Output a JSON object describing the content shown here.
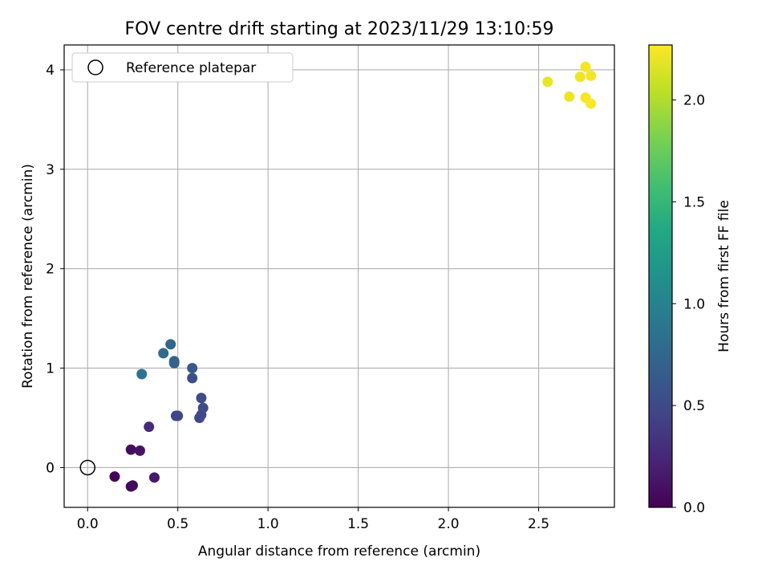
{
  "chart_data": {
    "type": "scatter",
    "title": "FOV centre drift starting at 2023/11/29 13:10:59",
    "xlabel": "Angular distance from reference (arcmin)",
    "ylabel": "Rotation from reference (arcmin)",
    "xlim": [
      -0.13,
      2.92
    ],
    "ylim": [
      -0.4,
      4.25
    ],
    "xticks": [
      0.0,
      0.5,
      1.0,
      1.5,
      2.0,
      2.5
    ],
    "xtick_labels": [
      "0.0",
      "0.5",
      "1.0",
      "1.5",
      "2.0",
      "2.5"
    ],
    "yticks": [
      0,
      1,
      2,
      3,
      4
    ],
    "ytick_labels": [
      "0",
      "1",
      "2",
      "3",
      "4"
    ],
    "grid": true,
    "legend": {
      "placement": "top-left",
      "entries": [
        "Reference platepar"
      ]
    },
    "reference_point": {
      "x": 0.0,
      "y": 0.0,
      "marker": "hollow-circle"
    },
    "colorbar": {
      "label": "Hours from first FF file",
      "colormap": "viridis",
      "range": [
        0.0,
        2.27
      ],
      "ticks": [
        0.0,
        0.5,
        1.0,
        1.5,
        2.0
      ],
      "tick_labels": [
        "0.0",
        "0.5",
        "1.0",
        "1.5",
        "2.0"
      ]
    },
    "points": [
      {
        "x": 0.15,
        "y": -0.09,
        "c": 0.02
      },
      {
        "x": 0.24,
        "y": -0.19,
        "c": 0.04
      },
      {
        "x": 0.25,
        "y": -0.18,
        "c": 0.05
      },
      {
        "x": 0.24,
        "y": 0.18,
        "c": 0.08
      },
      {
        "x": 0.29,
        "y": 0.17,
        "c": 0.12
      },
      {
        "x": 0.37,
        "y": -0.1,
        "c": 0.16
      },
      {
        "x": 0.34,
        "y": 0.41,
        "c": 0.28
      },
      {
        "x": 0.49,
        "y": 0.52,
        "c": 0.45
      },
      {
        "x": 0.5,
        "y": 0.52,
        "c": 0.47
      },
      {
        "x": 0.62,
        "y": 0.5,
        "c": 0.49
      },
      {
        "x": 0.63,
        "y": 0.53,
        "c": 0.5
      },
      {
        "x": 0.64,
        "y": 0.6,
        "c": 0.52
      },
      {
        "x": 0.63,
        "y": 0.7,
        "c": 0.53
      },
      {
        "x": 0.58,
        "y": 0.9,
        "c": 0.55
      },
      {
        "x": 0.58,
        "y": 1.0,
        "c": 0.62
      },
      {
        "x": 0.48,
        "y": 1.05,
        "c": 0.7
      },
      {
        "x": 0.48,
        "y": 1.07,
        "c": 0.72
      },
      {
        "x": 0.42,
        "y": 1.15,
        "c": 0.78
      },
      {
        "x": 0.46,
        "y": 1.24,
        "c": 0.75
      },
      {
        "x": 0.3,
        "y": 0.94,
        "c": 0.85
      },
      {
        "x": 2.55,
        "y": 3.88,
        "c": 2.2
      },
      {
        "x": 2.67,
        "y": 3.73,
        "c": 2.21
      },
      {
        "x": 2.73,
        "y": 3.93,
        "c": 2.22
      },
      {
        "x": 2.76,
        "y": 4.03,
        "c": 2.23
      },
      {
        "x": 2.79,
        "y": 3.94,
        "c": 2.24
      },
      {
        "x": 2.76,
        "y": 3.72,
        "c": 2.25
      },
      {
        "x": 2.79,
        "y": 3.66,
        "c": 2.26
      }
    ]
  }
}
